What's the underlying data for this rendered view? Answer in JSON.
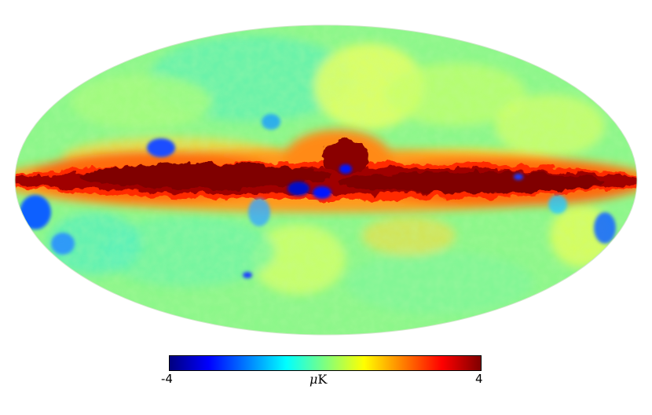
{
  "map": {
    "projection": "mollweide",
    "colormap": "jet",
    "scale_min": -4,
    "scale_max": 4
  },
  "colorbar": {
    "min_label": "-4",
    "max_label": "4",
    "unit_symbol": "μ",
    "unit_text": "K"
  },
  "colors": {
    "jet": [
      "#00007f",
      "#0000ff",
      "#007fff",
      "#00ffff",
      "#7fff7f",
      "#ffff00",
      "#ff7f00",
      "#ff0000",
      "#7f0000"
    ]
  }
}
